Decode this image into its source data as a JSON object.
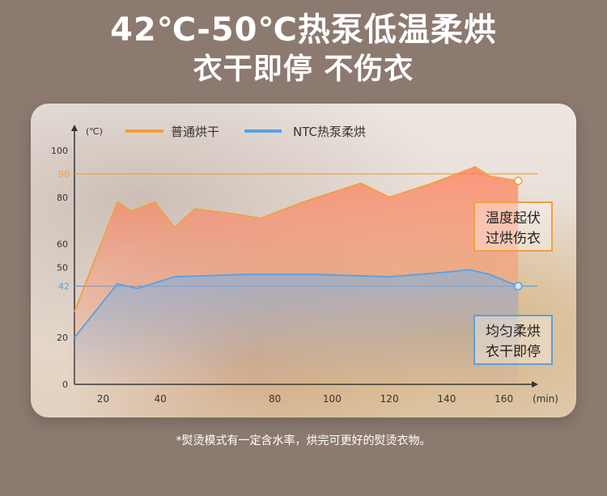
{
  "headline": {
    "line1": "42℃-50℃热泵低温柔烘",
    "line2": "衣干即停  不伤衣"
  },
  "footnote": "*熨烫模式有一定含水率，烘完可更好的熨烫衣物。",
  "colors": {
    "page_bg": "#8c7a70",
    "orange": "#f0a040",
    "blue": "#5aa0e0",
    "axis": "#333333"
  },
  "chart_data": {
    "type": "line",
    "yunit": "(℃)",
    "xunit": "(min)",
    "xlim": [
      10,
      170
    ],
    "ylim": [
      0,
      100
    ],
    "x_ticks": [
      "20",
      "40",
      "80",
      "100",
      "120",
      "140",
      "160"
    ],
    "y_ticks": [
      "0",
      "20",
      "50",
      "60",
      "80",
      "100"
    ],
    "reference_lines": [
      {
        "label": "90",
        "y": 90,
        "color": "#f0a040"
      },
      {
        "label": "42",
        "y": 42,
        "color": "#5aa0e0"
      }
    ],
    "series": [
      {
        "name": "普通烘干",
        "color": "#f0a040",
        "x": [
          10,
          25,
          30,
          38,
          45,
          52,
          65,
          75,
          90,
          110,
          120,
          135,
          150,
          155,
          165
        ],
        "y": [
          31,
          78,
          74,
          78,
          67,
          75,
          73,
          71,
          78,
          86,
          80,
          86,
          93,
          89,
          87
        ]
      },
      {
        "name": "NTC热泵柔烘",
        "color": "#5aa0e0",
        "x": [
          10,
          25,
          32,
          45,
          70,
          95,
          120,
          140,
          148,
          155,
          165
        ],
        "y": [
          20,
          43,
          41,
          46,
          47,
          47,
          46,
          48,
          49,
          47,
          42
        ]
      }
    ],
    "annotations": [
      {
        "lines": [
          "温度起伏",
          "过烘伤衣"
        ],
        "color": "#f0a040",
        "series": 0
      },
      {
        "lines": [
          "均匀柔烘",
          "衣干即停"
        ],
        "color": "#5aa0e0",
        "series": 1
      }
    ]
  }
}
